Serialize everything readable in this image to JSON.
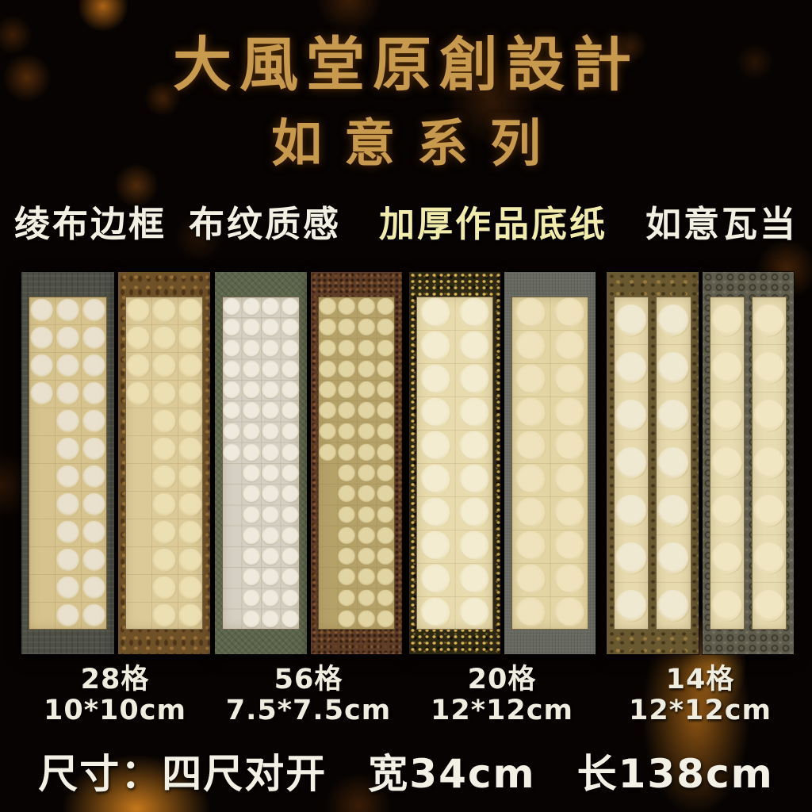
{
  "header": {
    "title_line1": "大風堂原創設計",
    "title_line2": "如意系列",
    "title_color": "#c89a4e"
  },
  "features": {
    "items": [
      {
        "text": "绫布边框",
        "color": "#f2efe3"
      },
      {
        "text": "布纹质感",
        "color": "#f2efe3"
      },
      {
        "text": "加厚作品底纸",
        "color": "#f1ecac"
      },
      {
        "text": "如意瓦当",
        "color": "#f2efe3"
      }
    ]
  },
  "products": {
    "groups": [
      {
        "label_cells": "28格",
        "label_size": "10*10cm",
        "scrolls": [
          {
            "name": "28-grid-green-border",
            "border_color": "#4e4f45",
            "pattern": "subtle-check",
            "paper_color": "#d6c38d",
            "circle_color": "#e9e1cd",
            "grid": {
              "cols": 3,
              "rows": 12,
              "full_rows": 4
            },
            "strips": 1
          },
          {
            "name": "28-grid-brown-brocade",
            "border_color": "#6f5128",
            "pattern": "floral-brown",
            "paper_color": "#dccb99",
            "circle_color": "#ecdfb2",
            "grid": {
              "cols": 3,
              "rows": 12,
              "full_rows": 4
            },
            "strips": 1
          }
        ]
      },
      {
        "label_cells": "56格",
        "label_size": "7.5*7.5cm",
        "scrolls": [
          {
            "name": "56-grid-sage-border",
            "border_color": "#5d664a",
            "pattern": "weave-green",
            "paper_color": "#d4d0c3",
            "circle_color": "#eeeadd",
            "grid": {
              "cols": 4,
              "rows": 16,
              "full_rows": 8
            },
            "strips": 1
          },
          {
            "name": "56-grid-maroon-brocade",
            "border_color": "#5e3c26",
            "pattern": "dense-floral-maroon",
            "paper_color": "#b5a268",
            "circle_color": "#e2d5a4",
            "grid": {
              "cols": 4,
              "rows": 16,
              "full_rows": 8
            },
            "strips": 1
          }
        ]
      },
      {
        "label_cells": "20格",
        "label_size": "12*12cm",
        "scrolls": [
          {
            "name": "20-grid-gold-speckle-border",
            "border_color": "#2e2912",
            "pattern": "gold-speckle",
            "paper_color": "#e8dcae",
            "circle_color": "#f3ecd0",
            "grid": {
              "cols": 2,
              "rows": 10,
              "full_rows": 10
            },
            "strips": 1
          },
          {
            "name": "20-grid-gray-border",
            "border_color": "#66685f",
            "pattern": "plain-gray",
            "paper_color": "#e3d5a4",
            "circle_color": "#efe3bd",
            "grid": {
              "cols": 2,
              "rows": 10,
              "full_rows": 10
            },
            "strips": 1
          }
        ]
      },
      {
        "label_cells": "14格",
        "label_size": "12*12cm",
        "scrolls": [
          {
            "name": "14-grid-gold-motif-border",
            "border_color": "#6a5930",
            "pattern": "gold-motif",
            "paper_color": "#e6daae",
            "circle_color": "#f0e9d2",
            "grid": {
              "cols": 1,
              "rows": 7,
              "full_rows": 7
            },
            "strips": 2
          },
          {
            "name": "14-grid-coin-pattern-border",
            "border_color": "#5f5d4e",
            "pattern": "coin-rings",
            "paper_color": "#e7dcb2",
            "circle_color": "#f1e6c2",
            "grid": {
              "cols": 1,
              "rows": 7,
              "full_rows": 7
            },
            "strips": 2
          }
        ]
      }
    ]
  },
  "footer": {
    "size_text": "尺寸：四尺对开　宽34cm　长138cm"
  },
  "palette": {
    "background": "#060302",
    "title_gold": "#c89a4e",
    "feature_white": "#f2efe3",
    "feature_yellow": "#f1ecac",
    "label_white": "#efece0",
    "bokeh_orange": "#c06a12"
  }
}
